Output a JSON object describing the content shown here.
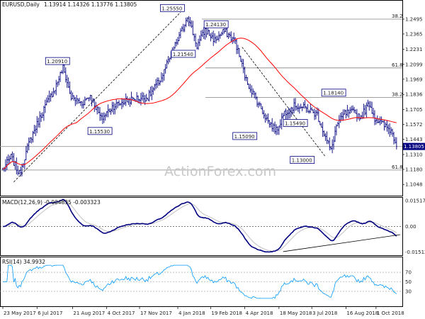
{
  "header": {
    "symbol": "EURUSD,Daily",
    "ohlc": "1.13914 1.14326 1.13776 1.13805"
  },
  "watermark": "ActionForex.com",
  "colors": {
    "bar": "#000080",
    "ma": "#ff0000",
    "macd": "#000080",
    "signal": "#c0c0c0",
    "rsi": "#0099ff",
    "trend": "#000000",
    "fib": "#808080",
    "level": "#e0e0e0",
    "price_box": "#000080"
  },
  "chart_data": [
    {
      "type": "ohlc",
      "title": "EURUSD,Daily",
      "ylim": [
        1.095,
        1.265
      ],
      "x_tick_labels": [
        "23 May 2017",
        "6 Jul 2017",
        "21 Aug 2017",
        "4 Oct 2017",
        "17 Nov 2017",
        "4 Jan 2018",
        "19 Feb 2018",
        "4 Apr 2018",
        "18 May 2018",
        "3 Jul 2018",
        "16 Aug 2018",
        "1 Oct 2018"
      ],
      "y_tick_labels": [
        1.2495,
        1.2365,
        1.2231,
        1.2099,
        1.1969,
        1.1836,
        1.1705,
        1.1572,
        1.1443,
        1.131,
        1.118,
        1.1048
      ],
      "current_price": "1.13805",
      "anchors": [
        {
          "i": 0,
          "v": 1.118
        },
        {
          "i": 6,
          "v": 1.129
        },
        {
          "i": 12,
          "v": 1.114
        },
        {
          "i": 20,
          "v": 1.144
        },
        {
          "i": 30,
          "v": 1.171
        },
        {
          "i": 38,
          "v": 1.189
        },
        {
          "i": 44,
          "v": 1.207
        },
        {
          "i": 50,
          "v": 1.181
        },
        {
          "i": 58,
          "v": 1.176
        },
        {
          "i": 64,
          "v": 1.183
        },
        {
          "i": 72,
          "v": 1.162
        },
        {
          "i": 80,
          "v": 1.173
        },
        {
          "i": 90,
          "v": 1.178
        },
        {
          "i": 98,
          "v": 1.18
        },
        {
          "i": 106,
          "v": 1.181
        },
        {
          "i": 116,
          "v": 1.198
        },
        {
          "i": 124,
          "v": 1.221
        },
        {
          "i": 132,
          "v": 1.242
        },
        {
          "i": 135,
          "v": 1.253
        },
        {
          "i": 142,
          "v": 1.226
        },
        {
          "i": 148,
          "v": 1.24
        },
        {
          "i": 155,
          "v": 1.231
        },
        {
          "i": 162,
          "v": 1.239
        },
        {
          "i": 170,
          "v": 1.23
        },
        {
          "i": 178,
          "v": 1.196
        },
        {
          "i": 186,
          "v": 1.178
        },
        {
          "i": 194,
          "v": 1.16
        },
        {
          "i": 200,
          "v": 1.152
        },
        {
          "i": 206,
          "v": 1.168
        },
        {
          "i": 214,
          "v": 1.174
        },
        {
          "i": 222,
          "v": 1.171
        },
        {
          "i": 230,
          "v": 1.166
        },
        {
          "i": 236,
          "v": 1.146
        },
        {
          "i": 240,
          "v": 1.134
        },
        {
          "i": 244,
          "v": 1.156
        },
        {
          "i": 250,
          "v": 1.167
        },
        {
          "i": 256,
          "v": 1.168
        },
        {
          "i": 262,
          "v": 1.164
        },
        {
          "i": 268,
          "v": 1.176
        },
        {
          "i": 272,
          "v": 1.163
        },
        {
          "i": 278,
          "v": 1.157
        },
        {
          "i": 284,
          "v": 1.152
        },
        {
          "i": 288,
          "v": 1.14
        }
      ],
      "annotations": [
        {
          "text": "1.25550",
          "price": 1.2555
        },
        {
          "text": "1.24130",
          "price": 1.2413
        },
        {
          "text": "1.21540",
          "price": 1.2154
        },
        {
          "text": "1.20910",
          "price": 1.2091
        },
        {
          "text": "1.15530",
          "price": 1.1553
        },
        {
          "text": "1.15090",
          "price": 1.1509
        },
        {
          "text": "1.15490",
          "price": 1.1549
        },
        {
          "text": "1.18140",
          "price": 1.1814
        },
        {
          "text": "1.13000",
          "price": 1.13
        }
      ],
      "fib_levels": [
        {
          "label": "38.2",
          "price": 1.2495
        },
        {
          "label": "61.8",
          "price": 1.2068
        },
        {
          "label": "38.2",
          "price": 1.181
        },
        {
          "label": "61.8",
          "price": 1.1174
        }
      ],
      "horizontal_levels": [
        1.2068,
        1.181,
        1.138,
        1.1174
      ],
      "trendlines": [
        {
          "from": {
            "i": 8,
            "v": 1.107
          },
          "to": {
            "i": 130,
            "v": 1.2555
          }
        },
        {
          "from": {
            "i": 175,
            "v": 1.225
          },
          "to": {
            "i": 236,
            "v": 1.129
          }
        }
      ]
    },
    {
      "type": "line",
      "title": "MACD(12,26,9) -0.004835 -0.003323",
      "y_tick_labels": [
        "0.015178",
        "0.00",
        "-0.015126"
      ],
      "ylim": [
        -0.0165,
        0.0165
      ],
      "zero_line": 0
    },
    {
      "type": "line",
      "title": "RSI(14) 34.9932",
      "y_tick_labels": [
        "70",
        "50",
        "30"
      ],
      "ylim": [
        0,
        100
      ],
      "levels": [
        70,
        50,
        30
      ]
    }
  ]
}
